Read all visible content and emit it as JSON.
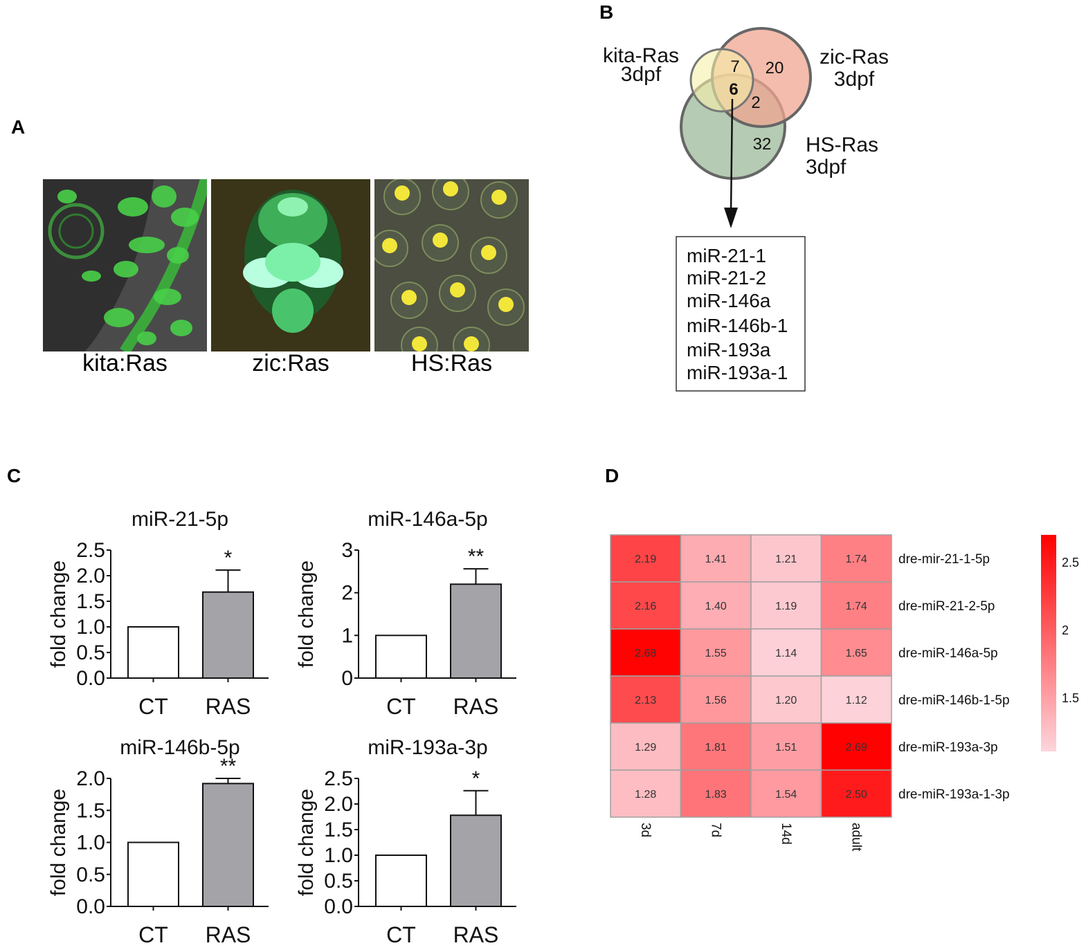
{
  "panels": {
    "A": "A",
    "B": "B",
    "C": "C",
    "D": "D"
  },
  "panel_a": {
    "images": [
      {
        "caption": "kita:Ras"
      },
      {
        "caption": "zic:Ras"
      },
      {
        "caption": "HS:Ras"
      }
    ]
  },
  "panel_b": {
    "sets": [
      {
        "label_line1": "kita-Ras",
        "label_line2": "3dpf",
        "color": "#f6f0a8"
      },
      {
        "label_line1": "zic-Ras",
        "label_line2": "3dpf",
        "color": "#f0a590"
      },
      {
        "label_line1": "HS-Ras",
        "label_line2": "3dpf",
        "color": "#9cb99a"
      }
    ],
    "counts": {
      "kita_zic": "7",
      "zic_only": "20",
      "all_three": "6",
      "zic_hs": "2",
      "hs_only": "32"
    },
    "mirna_list": [
      "miR-21-1",
      "miR-21-2",
      "miR-146a",
      "miR-146b-1",
      "miR-193a",
      "miR-193a-1"
    ]
  },
  "chart_data": [
    {
      "type": "bar",
      "title": "miR-21-5p",
      "ylabel": "fold change",
      "categories": [
        "CT",
        "RAS"
      ],
      "values": [
        1.0,
        1.68
      ],
      "errors": [
        0,
        0.43
      ],
      "significance": [
        "",
        "*"
      ],
      "ylim": [
        0,
        2.5
      ],
      "yticks": [
        "0.0",
        "0.5",
        "1.0",
        "1.5",
        "2.0",
        "2.5"
      ],
      "bar_colors": [
        "#ffffff",
        "#a3a3a8"
      ]
    },
    {
      "type": "bar",
      "title": "miR-146a-5p",
      "ylabel": "fold change",
      "categories": [
        "CT",
        "RAS"
      ],
      "values": [
        1.0,
        2.2
      ],
      "errors": [
        0,
        0.36
      ],
      "significance": [
        "",
        "**"
      ],
      "ylim": [
        0,
        3
      ],
      "yticks": [
        "0",
        "1",
        "2",
        "3"
      ],
      "bar_colors": [
        "#ffffff",
        "#a3a3a8"
      ]
    },
    {
      "type": "bar",
      "title": "miR-146b-5p",
      "ylabel": "fold change",
      "categories": [
        "CT",
        "RAS"
      ],
      "values": [
        1.0,
        1.92
      ],
      "errors": [
        0,
        0.08
      ],
      "significance": [
        "",
        "**"
      ],
      "ylim": [
        0,
        2.0
      ],
      "yticks": [
        "0.0",
        "0.5",
        "1.0",
        "1.5",
        "2.0"
      ],
      "bar_colors": [
        "#ffffff",
        "#a3a3a8"
      ]
    },
    {
      "type": "bar",
      "title": "miR-193a-3p",
      "ylabel": "fold change",
      "categories": [
        "CT",
        "RAS"
      ],
      "values": [
        1.0,
        1.78
      ],
      "errors": [
        0,
        0.48
      ],
      "significance": [
        "",
        "*"
      ],
      "ylim": [
        0,
        2.5
      ],
      "yticks": [
        "0.0",
        "0.5",
        "1.0",
        "1.5",
        "2.0",
        "2.5"
      ],
      "bar_colors": [
        "#ffffff",
        "#a3a3a8"
      ]
    },
    {
      "type": "heatmap",
      "columns": [
        "3d",
        "7d",
        "14d",
        "adult"
      ],
      "rows": [
        "dre-mir-21-1-5p",
        "dre-miR-21-2-5p",
        "dre-miR-146a-5p",
        "dre-miR-146b-1-5p",
        "dre-miR-193a-3p",
        "dre-miR-193a-1-3p"
      ],
      "values": [
        [
          "2.19",
          "1.41",
          "1.21",
          "1.74"
        ],
        [
          "2.16",
          "1.40",
          "1.19",
          "1.74"
        ],
        [
          "2.68",
          "1.55",
          "1.14",
          "1.65"
        ],
        [
          "2.13",
          "1.56",
          "1.20",
          "1.12"
        ],
        [
          "1.29",
          "1.81",
          "1.51",
          "2.69"
        ],
        [
          "1.28",
          "1.83",
          "1.54",
          "2.50"
        ]
      ],
      "color_min": "#fdd5dc",
      "color_max": "#ff0000",
      "color_range": [
        1.1,
        2.7
      ],
      "colorbar_ticks": [
        "2.5",
        "2",
        "1.5"
      ]
    }
  ]
}
